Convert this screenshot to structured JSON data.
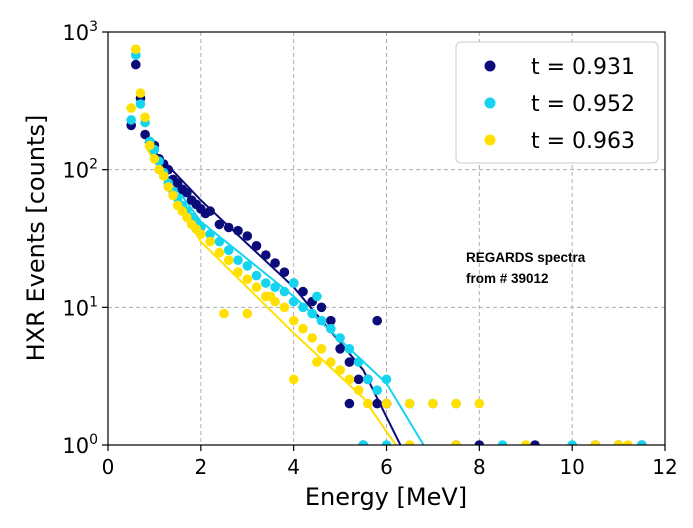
{
  "chart_data": {
    "type": "scatter",
    "title": "",
    "xlabel": "Energy [MeV]",
    "ylabel": "HXR Events [counts]",
    "xlim": [
      0,
      12
    ],
    "ylim_log10": [
      0,
      3
    ],
    "yscale": "log",
    "x_ticks": [
      0,
      2,
      4,
      6,
      8,
      10,
      12
    ],
    "y_ticks": [
      {
        "base": "10",
        "exp": "0",
        "value": 1
      },
      {
        "base": "10",
        "exp": "1",
        "value": 10
      },
      {
        "base": "10",
        "exp": "2",
        "value": 100
      },
      {
        "base": "10",
        "exp": "3",
        "value": 1000
      }
    ],
    "grid": true,
    "legend_position": "top-right",
    "annotation": [
      "REGARDS spectra",
      "from # 39012"
    ],
    "series": [
      {
        "name": "t = 0.931",
        "color": "#0b0b7a",
        "points": [
          [
            0.5,
            210
          ],
          [
            0.6,
            580
          ],
          [
            0.7,
            330
          ],
          [
            0.8,
            180
          ],
          [
            0.9,
            160
          ],
          [
            1.0,
            150
          ],
          [
            1.1,
            120
          ],
          [
            1.2,
            110
          ],
          [
            1.3,
            100
          ],
          [
            1.4,
            85
          ],
          [
            1.5,
            80
          ],
          [
            1.6,
            72
          ],
          [
            1.7,
            68
          ],
          [
            1.8,
            60
          ],
          [
            1.9,
            56
          ],
          [
            2.0,
            52
          ],
          [
            2.1,
            48
          ],
          [
            2.2,
            50
          ],
          [
            2.4,
            40
          ],
          [
            2.6,
            38
          ],
          [
            2.8,
            36
          ],
          [
            3.0,
            33
          ],
          [
            3.2,
            28
          ],
          [
            3.4,
            24
          ],
          [
            3.6,
            21
          ],
          [
            3.8,
            18
          ],
          [
            4.0,
            15
          ],
          [
            4.2,
            13
          ],
          [
            4.4,
            11
          ],
          [
            4.6,
            10
          ],
          [
            4.8,
            8
          ],
          [
            5.0,
            5
          ],
          [
            5.2,
            4
          ],
          [
            5.4,
            3
          ],
          [
            5.6,
            3
          ],
          [
            5.8,
            2
          ],
          [
            6.0,
            2
          ],
          [
            5.2,
            2
          ],
          [
            5.5,
            1
          ],
          [
            5.8,
            8
          ],
          [
            7.5,
            1
          ],
          [
            8.0,
            1
          ],
          [
            9.2,
            1
          ],
          [
            10.5,
            1
          ],
          [
            11.0,
            1
          ],
          [
            11.5,
            1
          ]
        ],
        "fit": [
          [
            0.8,
            160
          ],
          [
            2,
            60
          ],
          [
            4,
            14
          ],
          [
            5.5,
            3.5
          ],
          [
            6.3,
            1
          ]
        ]
      },
      {
        "name": "t = 0.952",
        "color": "#14d4f0",
        "points": [
          [
            0.5,
            230
          ],
          [
            0.6,
            680
          ],
          [
            0.7,
            300
          ],
          [
            0.8,
            220
          ],
          [
            0.9,
            160
          ],
          [
            1.0,
            140
          ],
          [
            1.1,
            115
          ],
          [
            1.2,
            95
          ],
          [
            1.3,
            80
          ],
          [
            1.4,
            70
          ],
          [
            1.5,
            62
          ],
          [
            1.6,
            55
          ],
          [
            1.7,
            50
          ],
          [
            1.8,
            45
          ],
          [
            1.9,
            42
          ],
          [
            2.0,
            38
          ],
          [
            2.2,
            34
          ],
          [
            2.4,
            30
          ],
          [
            2.6,
            26
          ],
          [
            2.8,
            22
          ],
          [
            3.0,
            20
          ],
          [
            3.2,
            17
          ],
          [
            3.4,
            15
          ],
          [
            3.6,
            14
          ],
          [
            3.8,
            13
          ],
          [
            4.0,
            11
          ],
          [
            4.2,
            10
          ],
          [
            4.4,
            9
          ],
          [
            4.6,
            8
          ],
          [
            4.8,
            7
          ],
          [
            5.0,
            6
          ],
          [
            5.2,
            5
          ],
          [
            5.4,
            4
          ],
          [
            5.6,
            3
          ],
          [
            5.8,
            2.5
          ],
          [
            6.0,
            3
          ],
          [
            6.5,
            2
          ],
          [
            7.0,
            2
          ],
          [
            7.5,
            2
          ],
          [
            4.5,
            12
          ],
          [
            4.0,
            15
          ],
          [
            5.5,
            1
          ],
          [
            6.0,
            1
          ],
          [
            8.5,
            1
          ],
          [
            10.0,
            1
          ],
          [
            11.5,
            1
          ]
        ],
        "fit": [
          [
            0.8,
            150
          ],
          [
            2,
            42
          ],
          [
            4,
            12
          ],
          [
            6,
            2.8
          ],
          [
            6.8,
            1
          ]
        ]
      },
      {
        "name": "t = 0.963",
        "color": "#ffe000",
        "points": [
          [
            0.5,
            280
          ],
          [
            0.6,
            750
          ],
          [
            0.7,
            360
          ],
          [
            0.8,
            240
          ],
          [
            0.9,
            150
          ],
          [
            1.0,
            120
          ],
          [
            1.1,
            100
          ],
          [
            1.2,
            90
          ],
          [
            1.3,
            75
          ],
          [
            1.4,
            65
          ],
          [
            1.5,
            55
          ],
          [
            1.6,
            50
          ],
          [
            1.7,
            45
          ],
          [
            1.8,
            40
          ],
          [
            1.9,
            37
          ],
          [
            2.0,
            34
          ],
          [
            2.2,
            30
          ],
          [
            2.4,
            25
          ],
          [
            2.6,
            22
          ],
          [
            2.8,
            18
          ],
          [
            3.0,
            16
          ],
          [
            3.2,
            14
          ],
          [
            3.4,
            12
          ],
          [
            3.6,
            11
          ],
          [
            3.8,
            10
          ],
          [
            4.0,
            8
          ],
          [
            4.2,
            7
          ],
          [
            4.4,
            6
          ],
          [
            4.6,
            5
          ],
          [
            4.8,
            4
          ],
          [
            5.0,
            3.5
          ],
          [
            5.2,
            3
          ],
          [
            5.4,
            2.5
          ],
          [
            5.6,
            2
          ],
          [
            6.0,
            2
          ],
          [
            6.5,
            2
          ],
          [
            7.0,
            2
          ],
          [
            7.5,
            2
          ],
          [
            8.0,
            2
          ],
          [
            2.5,
            9
          ],
          [
            3.0,
            9
          ],
          [
            3.5,
            12
          ],
          [
            4.0,
            3
          ],
          [
            4.5,
            4
          ],
          [
            6.5,
            1
          ],
          [
            7.5,
            1
          ],
          [
            9.0,
            1
          ],
          [
            10.5,
            1
          ],
          [
            11.0,
            1
          ],
          [
            11.2,
            1
          ]
        ],
        "fit": [
          [
            0.8,
            150
          ],
          [
            2,
            30
          ],
          [
            4,
            6.5
          ],
          [
            5.5,
            2.2
          ],
          [
            6.2,
            1
          ]
        ]
      }
    ]
  }
}
